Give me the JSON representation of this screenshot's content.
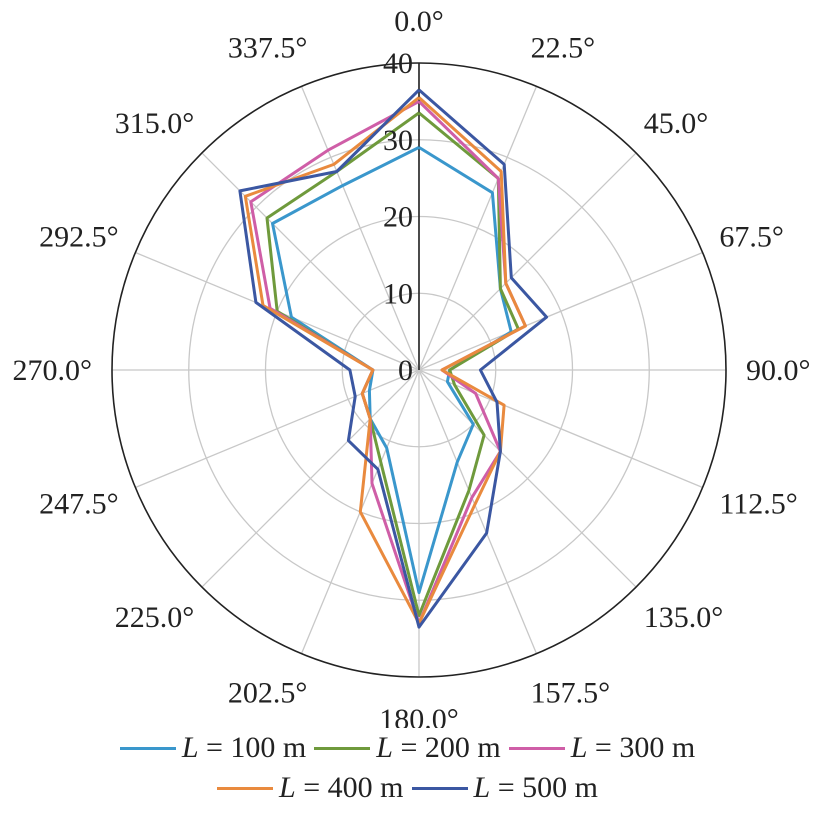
{
  "chart_data": {
    "type": "polar-line",
    "angles": [
      0,
      22.5,
      45,
      67.5,
      90,
      112.5,
      135,
      157.5,
      180,
      202.5,
      225,
      247.5,
      270,
      292.5,
      315,
      337.5
    ],
    "angle_labels": [
      "0.0°",
      "22.5°",
      "45.0°",
      "67.5°",
      "90.0°",
      "112.5°",
      "135.0°",
      "157.5°",
      "180.0°",
      "202.5°",
      "225.0°",
      "247.5°",
      "270.0°",
      "292.5°",
      "315.0°",
      "337.5°"
    ],
    "radial_ticks": [
      0,
      10,
      20,
      30,
      40
    ],
    "radial_tick_labels": [
      "0",
      "10",
      "20",
      "30",
      "40"
    ],
    "rlim": [
      0,
      40
    ],
    "grid": true,
    "legend_position": "bottom",
    "series": [
      {
        "label_var": "L",
        "label_value": "100 m",
        "color": "#3a97cc",
        "values": [
          29,
          25,
          15,
          13,
          4,
          4,
          10,
          13,
          29,
          11,
          9,
          7,
          6,
          18,
          27,
          26
        ]
      },
      {
        "label_var": "L",
        "label_value": "200 m",
        "color": "#6f9a3c",
        "values": [
          33.5,
          27,
          15,
          14,
          4,
          5,
          12,
          17,
          32,
          13,
          9,
          8,
          6,
          20,
          28,
          28
        ]
      },
      {
        "label_var": "L",
        "label_value": "300 m",
        "color": "#cf5ea7",
        "values": [
          35,
          27,
          16,
          15,
          3,
          8,
          15,
          18,
          33,
          16,
          9,
          8,
          6,
          21,
          31,
          31
        ]
      },
      {
        "label_var": "L",
        "label_value": "400 m",
        "color": "#e98a3e",
        "values": [
          35.5,
          28,
          16,
          15,
          3,
          12,
          15,
          19,
          33,
          20,
          9,
          8,
          6,
          22,
          32,
          29
        ]
      },
      {
        "label_var": "L",
        "label_value": "500 m",
        "color": "#3b57a2",
        "values": [
          36.5,
          29,
          17,
          18,
          8,
          11,
          15,
          23,
          33.5,
          14,
          13,
          9,
          9,
          23,
          33,
          28
        ]
      }
    ]
  }
}
